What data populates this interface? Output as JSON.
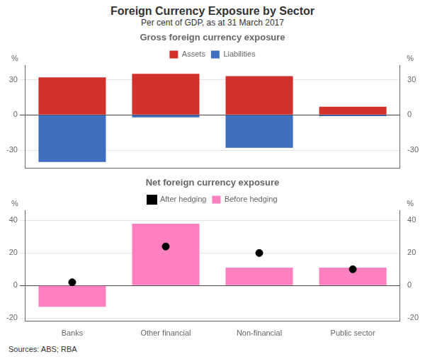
{
  "title": "Foreign Currency Exposure by Sector",
  "subtitle": "Per cent of GDP, as at 31 March 2017",
  "source": "Sources: ABS; RBA",
  "chart_data": [
    {
      "type": "bar",
      "title": "Gross foreign currency exposure",
      "categories": [
        "Banks",
        "Other financial",
        "Non-financial",
        "Public sector"
      ],
      "series": [
        {
          "name": "Assets",
          "color": "#d0312d",
          "values": [
            32,
            35,
            33,
            7
          ]
        },
        {
          "name": "Liabilities",
          "color": "#3f6ebf",
          "values": [
            -40,
            -2,
            -28,
            -1
          ]
        }
      ],
      "stacked": true,
      "ylim": [
        -45,
        42
      ],
      "yticks": [
        -30,
        0,
        30
      ],
      "y2lim": [
        -45,
        42
      ],
      "y2ticks": [
        -30,
        0,
        30
      ],
      "ylabel": "%",
      "y2label": "%",
      "grid": true,
      "legend": "top",
      "tick_labels": "y"
    },
    {
      "type": "bar",
      "title": "Net foreign currency exposure",
      "categories": [
        "Banks",
        "Other financial",
        "Non-financial",
        "Public sector"
      ],
      "series": [
        {
          "name": "Before hedging",
          "type": "bar",
          "color": "#ff80c0",
          "values": [
            -13,
            38,
            11,
            11
          ]
        },
        {
          "name": "After hedging",
          "type": "scatter",
          "marker": "circle",
          "color": "#000000",
          "values": [
            2,
            24,
            20,
            10
          ]
        }
      ],
      "ylim": [
        -22,
        46
      ],
      "yticks": [
        -20,
        0,
        20,
        40
      ],
      "y2lim": [
        -22,
        46
      ],
      "y2ticks": [
        -20,
        0,
        20,
        40
      ],
      "ylabel": "%",
      "y2label": "%",
      "grid": true,
      "legend": "top"
    }
  ]
}
